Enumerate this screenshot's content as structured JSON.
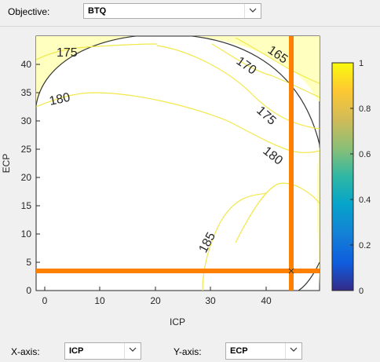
{
  "objective": {
    "label": "Objective:",
    "value": "BTQ"
  },
  "x_axis_select": {
    "label": "X-axis:",
    "value": "ICP"
  },
  "y_axis_select": {
    "label": "Y-axis:",
    "value": "ECP"
  },
  "colors": {
    "constraint_fill": "#ffffc0",
    "contour": "#f2e84a",
    "crosshair": "#ff8000",
    "boundary": "#333333"
  },
  "icons": {
    "dropdown": "chevron-down-icon",
    "marker": "x-marker-icon"
  },
  "chart_data": {
    "type": "contour",
    "xlabel": "ICP",
    "ylabel": "ECP",
    "xlim": [
      -2,
      49
    ],
    "ylim": [
      0,
      44
    ],
    "x_ticks": [
      0,
      10,
      20,
      30,
      40
    ],
    "y_ticks": [
      0,
      5,
      10,
      15,
      20,
      25,
      30,
      35,
      40
    ],
    "contour_labels": [
      "165",
      "170",
      "175",
      "175",
      "180",
      "180",
      "185"
    ],
    "crosshair": {
      "x": 44,
      "y": 3.5
    },
    "colorbar": {
      "ticks": [
        "0",
        "0.2",
        "0.4",
        "0.6",
        "0.8",
        "1"
      ],
      "range": [
        0,
        1
      ]
    }
  }
}
